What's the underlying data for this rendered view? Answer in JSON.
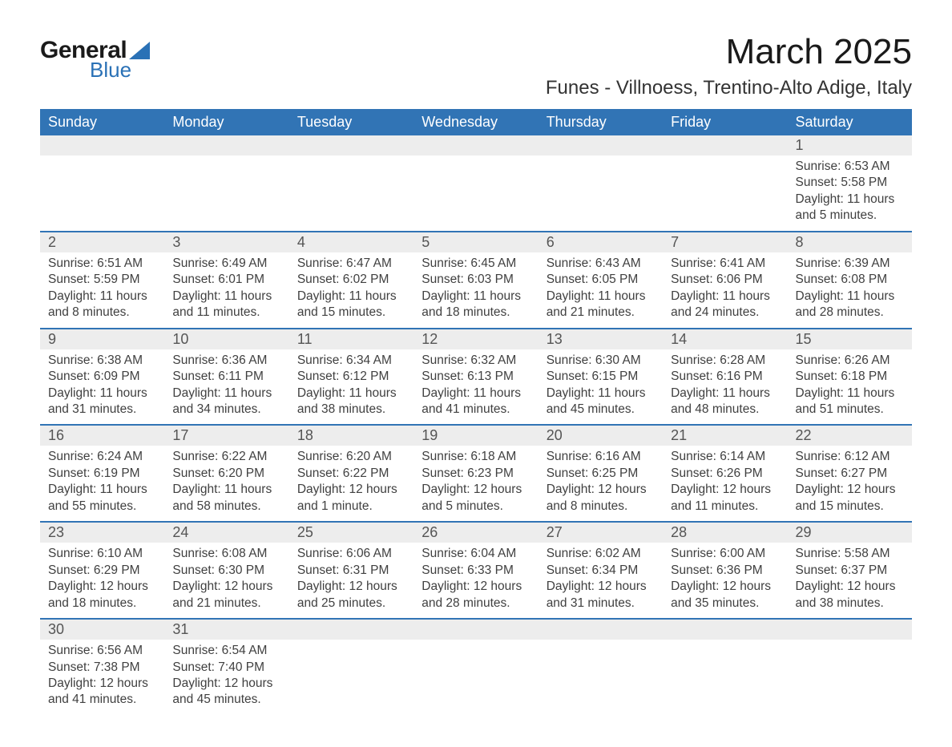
{
  "logo": {
    "word1": "General",
    "word2": "Blue"
  },
  "title": "March 2025",
  "location": "Funes - Villnoess, Trentino-Alto Adige, Italy",
  "colors": {
    "header_bg": "#3174b5",
    "header_text": "#ffffff",
    "daynum_bg": "#ededed",
    "daynum_text": "#555555",
    "body_text": "#404040",
    "divider": "#3174b5",
    "logo_accent": "#2a71b6",
    "page_bg": "#ffffff"
  },
  "fonts": {
    "title_size_pt": 33,
    "location_size_pt": 18,
    "header_size_pt": 14,
    "daynum_size_pt": 14,
    "cell_size_pt": 12
  },
  "weekdays": [
    "Sunday",
    "Monday",
    "Tuesday",
    "Wednesday",
    "Thursday",
    "Friday",
    "Saturday"
  ],
  "weeks": [
    [
      null,
      null,
      null,
      null,
      null,
      null,
      {
        "n": "1",
        "sr": "Sunrise: 6:53 AM",
        "ss": "Sunset: 5:58 PM",
        "dl": "Daylight: 11 hours and 5 minutes."
      }
    ],
    [
      {
        "n": "2",
        "sr": "Sunrise: 6:51 AM",
        "ss": "Sunset: 5:59 PM",
        "dl": "Daylight: 11 hours and 8 minutes."
      },
      {
        "n": "3",
        "sr": "Sunrise: 6:49 AM",
        "ss": "Sunset: 6:01 PM",
        "dl": "Daylight: 11 hours and 11 minutes."
      },
      {
        "n": "4",
        "sr": "Sunrise: 6:47 AM",
        "ss": "Sunset: 6:02 PM",
        "dl": "Daylight: 11 hours and 15 minutes."
      },
      {
        "n": "5",
        "sr": "Sunrise: 6:45 AM",
        "ss": "Sunset: 6:03 PM",
        "dl": "Daylight: 11 hours and 18 minutes."
      },
      {
        "n": "6",
        "sr": "Sunrise: 6:43 AM",
        "ss": "Sunset: 6:05 PM",
        "dl": "Daylight: 11 hours and 21 minutes."
      },
      {
        "n": "7",
        "sr": "Sunrise: 6:41 AM",
        "ss": "Sunset: 6:06 PM",
        "dl": "Daylight: 11 hours and 24 minutes."
      },
      {
        "n": "8",
        "sr": "Sunrise: 6:39 AM",
        "ss": "Sunset: 6:08 PM",
        "dl": "Daylight: 11 hours and 28 minutes."
      }
    ],
    [
      {
        "n": "9",
        "sr": "Sunrise: 6:38 AM",
        "ss": "Sunset: 6:09 PM",
        "dl": "Daylight: 11 hours and 31 minutes."
      },
      {
        "n": "10",
        "sr": "Sunrise: 6:36 AM",
        "ss": "Sunset: 6:11 PM",
        "dl": "Daylight: 11 hours and 34 minutes."
      },
      {
        "n": "11",
        "sr": "Sunrise: 6:34 AM",
        "ss": "Sunset: 6:12 PM",
        "dl": "Daylight: 11 hours and 38 minutes."
      },
      {
        "n": "12",
        "sr": "Sunrise: 6:32 AM",
        "ss": "Sunset: 6:13 PM",
        "dl": "Daylight: 11 hours and 41 minutes."
      },
      {
        "n": "13",
        "sr": "Sunrise: 6:30 AM",
        "ss": "Sunset: 6:15 PM",
        "dl": "Daylight: 11 hours and 45 minutes."
      },
      {
        "n": "14",
        "sr": "Sunrise: 6:28 AM",
        "ss": "Sunset: 6:16 PM",
        "dl": "Daylight: 11 hours and 48 minutes."
      },
      {
        "n": "15",
        "sr": "Sunrise: 6:26 AM",
        "ss": "Sunset: 6:18 PM",
        "dl": "Daylight: 11 hours and 51 minutes."
      }
    ],
    [
      {
        "n": "16",
        "sr": "Sunrise: 6:24 AM",
        "ss": "Sunset: 6:19 PM",
        "dl": "Daylight: 11 hours and 55 minutes."
      },
      {
        "n": "17",
        "sr": "Sunrise: 6:22 AM",
        "ss": "Sunset: 6:20 PM",
        "dl": "Daylight: 11 hours and 58 minutes."
      },
      {
        "n": "18",
        "sr": "Sunrise: 6:20 AM",
        "ss": "Sunset: 6:22 PM",
        "dl": "Daylight: 12 hours and 1 minute."
      },
      {
        "n": "19",
        "sr": "Sunrise: 6:18 AM",
        "ss": "Sunset: 6:23 PM",
        "dl": "Daylight: 12 hours and 5 minutes."
      },
      {
        "n": "20",
        "sr": "Sunrise: 6:16 AM",
        "ss": "Sunset: 6:25 PM",
        "dl": "Daylight: 12 hours and 8 minutes."
      },
      {
        "n": "21",
        "sr": "Sunrise: 6:14 AM",
        "ss": "Sunset: 6:26 PM",
        "dl": "Daylight: 12 hours and 11 minutes."
      },
      {
        "n": "22",
        "sr": "Sunrise: 6:12 AM",
        "ss": "Sunset: 6:27 PM",
        "dl": "Daylight: 12 hours and 15 minutes."
      }
    ],
    [
      {
        "n": "23",
        "sr": "Sunrise: 6:10 AM",
        "ss": "Sunset: 6:29 PM",
        "dl": "Daylight: 12 hours and 18 minutes."
      },
      {
        "n": "24",
        "sr": "Sunrise: 6:08 AM",
        "ss": "Sunset: 6:30 PM",
        "dl": "Daylight: 12 hours and 21 minutes."
      },
      {
        "n": "25",
        "sr": "Sunrise: 6:06 AM",
        "ss": "Sunset: 6:31 PM",
        "dl": "Daylight: 12 hours and 25 minutes."
      },
      {
        "n": "26",
        "sr": "Sunrise: 6:04 AM",
        "ss": "Sunset: 6:33 PM",
        "dl": "Daylight: 12 hours and 28 minutes."
      },
      {
        "n": "27",
        "sr": "Sunrise: 6:02 AM",
        "ss": "Sunset: 6:34 PM",
        "dl": "Daylight: 12 hours and 31 minutes."
      },
      {
        "n": "28",
        "sr": "Sunrise: 6:00 AM",
        "ss": "Sunset: 6:36 PM",
        "dl": "Daylight: 12 hours and 35 minutes."
      },
      {
        "n": "29",
        "sr": "Sunrise: 5:58 AM",
        "ss": "Sunset: 6:37 PM",
        "dl": "Daylight: 12 hours and 38 minutes."
      }
    ],
    [
      {
        "n": "30",
        "sr": "Sunrise: 6:56 AM",
        "ss": "Sunset: 7:38 PM",
        "dl": "Daylight: 12 hours and 41 minutes."
      },
      {
        "n": "31",
        "sr": "Sunrise: 6:54 AM",
        "ss": "Sunset: 7:40 PM",
        "dl": "Daylight: 12 hours and 45 minutes."
      },
      null,
      null,
      null,
      null,
      null
    ]
  ]
}
